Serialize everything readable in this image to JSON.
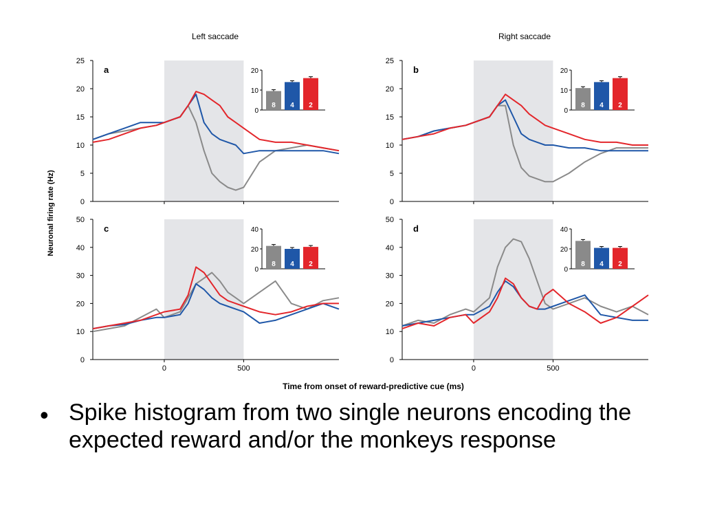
{
  "column_titles": [
    "Left saccade",
    "Right saccade"
  ],
  "y_axis_label": "Neuronal firing rate (Hz)",
  "x_axis_label": "Time from onset of reward-predictive cue (ms)",
  "bullet": "Spike histogram from two single neurons encoding the expected reward and/or the monkeys response",
  "colors": {
    "gray": "#8a8a8a",
    "blue": "#1f57a8",
    "red": "#e3262b",
    "shade": "#e4e5e8"
  },
  "chart_data": [
    {
      "type": "line",
      "panel": "a",
      "column": "Left saccade",
      "xlim": [
        -450,
        1100
      ],
      "ylim": [
        0,
        25
      ],
      "yticks": [
        0,
        5,
        10,
        15,
        20,
        25
      ],
      "xticks": [
        0,
        500
      ],
      "shaded_interval": [
        0,
        500
      ],
      "series": [
        {
          "color": "gray",
          "x": [
            -450,
            -350,
            -250,
            -150,
            -50,
            0,
            100,
            150,
            200,
            250,
            300,
            350,
            400,
            450,
            500,
            600,
            700,
            800,
            900,
            1000,
            1100
          ],
          "y": [
            11,
            12,
            12.5,
            13,
            13.5,
            14,
            15,
            17,
            14,
            9,
            5,
            3.5,
            2.5,
            2,
            2.5,
            7,
            9,
            9.5,
            10,
            9.5,
            9
          ]
        },
        {
          "color": "blue",
          "x": [
            -450,
            -350,
            -250,
            -150,
            -50,
            0,
            100,
            150,
            200,
            250,
            300,
            350,
            400,
            450,
            500,
            600,
            700,
            800,
            900,
            1000,
            1100
          ],
          "y": [
            11,
            12,
            13,
            14,
            14,
            14,
            15,
            17,
            19,
            14,
            12,
            11,
            10.5,
            10,
            8.5,
            9,
            9,
            9,
            9,
            9,
            8.5
          ]
        },
        {
          "color": "red",
          "x": [
            -450,
            -350,
            -250,
            -150,
            -50,
            0,
            100,
            150,
            200,
            250,
            300,
            350,
            400,
            450,
            500,
            600,
            700,
            800,
            900,
            1000,
            1100
          ],
          "y": [
            10.5,
            11,
            12,
            13,
            13.5,
            14,
            15,
            17,
            19.5,
            19,
            18,
            17,
            15,
            14,
            13,
            11,
            10.5,
            10.5,
            10,
            9.5,
            9
          ]
        }
      ],
      "inset": {
        "ylim": [
          0,
          20
        ],
        "yticks": [
          0,
          10,
          20
        ],
        "bars": [
          {
            "label": "8",
            "color": "gray",
            "value": 9.5
          },
          {
            "label": "4",
            "color": "blue",
            "value": 14
          },
          {
            "label": "2",
            "color": "red",
            "value": 16
          }
        ]
      }
    },
    {
      "type": "line",
      "panel": "b",
      "column": "Right saccade",
      "xlim": [
        -450,
        1100
      ],
      "ylim": [
        0,
        25
      ],
      "yticks": [
        0,
        5,
        10,
        15,
        20,
        25
      ],
      "xticks": [
        0,
        500
      ],
      "shaded_interval": [
        0,
        500
      ],
      "series": [
        {
          "color": "gray",
          "x": [
            -450,
            -350,
            -250,
            -150,
            -50,
            0,
            100,
            150,
            200,
            250,
            300,
            350,
            400,
            450,
            500,
            600,
            700,
            800,
            900,
            1000,
            1100
          ],
          "y": [
            11,
            11.5,
            12.5,
            13,
            13.5,
            14,
            15,
            17,
            17,
            10,
            6,
            4.5,
            4,
            3.5,
            3.5,
            5,
            7,
            8.5,
            9.5,
            9.5,
            9.5
          ]
        },
        {
          "color": "blue",
          "x": [
            -450,
            -350,
            -250,
            -150,
            -50,
            0,
            100,
            150,
            200,
            250,
            300,
            350,
            400,
            450,
            500,
            600,
            700,
            800,
            900,
            1000,
            1100
          ],
          "y": [
            11,
            11.5,
            12.5,
            13,
            13.5,
            14,
            15,
            17,
            18,
            15,
            12,
            11,
            10.5,
            10,
            10,
            9.5,
            9.5,
            9,
            9,
            9,
            9
          ]
        },
        {
          "color": "red",
          "x": [
            -450,
            -350,
            -250,
            -150,
            -50,
            0,
            100,
            150,
            200,
            250,
            300,
            350,
            400,
            450,
            500,
            600,
            700,
            800,
            900,
            1000,
            1100
          ],
          "y": [
            11,
            11.5,
            12,
            13,
            13.5,
            14,
            15,
            17,
            19,
            18,
            17,
            15.5,
            14.5,
            13.5,
            13,
            12,
            11,
            10.5,
            10.5,
            10,
            10
          ]
        }
      ],
      "inset": {
        "ylim": [
          0,
          20
        ],
        "yticks": [
          0,
          10,
          20
        ],
        "bars": [
          {
            "label": "8",
            "color": "gray",
            "value": 11
          },
          {
            "label": "4",
            "color": "blue",
            "value": 14
          },
          {
            "label": "2",
            "color": "red",
            "value": 16
          }
        ]
      }
    },
    {
      "type": "line",
      "panel": "c",
      "column": "Left saccade",
      "xlim": [
        -450,
        1100
      ],
      "ylim": [
        0,
        50
      ],
      "yticks": [
        0,
        10,
        20,
        30,
        40,
        50
      ],
      "xticks": [
        0,
        500
      ],
      "xticklabels": [
        "0",
        "500"
      ],
      "shaded_interval": [
        0,
        500
      ],
      "series": [
        {
          "color": "gray",
          "x": [
            -450,
            -350,
            -250,
            -150,
            -50,
            0,
            100,
            150,
            200,
            250,
            300,
            350,
            400,
            450,
            500,
            600,
            700,
            800,
            900,
            1000,
            1100
          ],
          "y": [
            10,
            11,
            12,
            15,
            18,
            15,
            17,
            22,
            27,
            29,
            31,
            28,
            24,
            22,
            20,
            24,
            28,
            20,
            18,
            21,
            22
          ]
        },
        {
          "color": "blue",
          "x": [
            -450,
            -350,
            -250,
            -150,
            -50,
            0,
            100,
            150,
            200,
            250,
            300,
            350,
            400,
            450,
            500,
            600,
            700,
            800,
            900,
            1000,
            1100
          ],
          "y": [
            11,
            12,
            12.5,
            14,
            15,
            15,
            16,
            20,
            27,
            25,
            22,
            20,
            19,
            18,
            17,
            13,
            14,
            16,
            18,
            20,
            18
          ]
        },
        {
          "color": "red",
          "x": [
            -450,
            -350,
            -250,
            -150,
            -50,
            0,
            100,
            150,
            200,
            250,
            300,
            350,
            400,
            450,
            500,
            600,
            700,
            800,
            900,
            1000,
            1100
          ],
          "y": [
            11,
            12,
            13,
            14,
            16,
            17,
            18,
            23,
            33,
            31,
            27,
            23,
            21,
            20,
            19,
            17,
            16,
            17,
            19,
            20,
            20
          ]
        }
      ],
      "inset": {
        "ylim": [
          0,
          40
        ],
        "yticks": [
          0,
          20,
          40
        ],
        "bars": [
          {
            "label": "8",
            "color": "gray",
            "value": 23
          },
          {
            "label": "4",
            "color": "blue",
            "value": 20
          },
          {
            "label": "2",
            "color": "red",
            "value": 22
          }
        ]
      }
    },
    {
      "type": "line",
      "panel": "d",
      "column": "Right saccade",
      "xlim": [
        -450,
        1100
      ],
      "ylim": [
        0,
        50
      ],
      "yticks": [
        0,
        10,
        20,
        30,
        40,
        50
      ],
      "xticks": [
        0,
        500
      ],
      "xticklabels": [
        "0",
        "500"
      ],
      "shaded_interval": [
        0,
        500
      ],
      "series": [
        {
          "color": "gray",
          "x": [
            -450,
            -350,
            -250,
            -150,
            -50,
            0,
            100,
            150,
            200,
            250,
            300,
            350,
            400,
            450,
            500,
            600,
            700,
            800,
            900,
            1000,
            1100
          ],
          "y": [
            12,
            14,
            13,
            16,
            18,
            17,
            22,
            33,
            40,
            43,
            42,
            36,
            28,
            20,
            18,
            20,
            22,
            19,
            17,
            19,
            16
          ]
        },
        {
          "color": "blue",
          "x": [
            -450,
            -350,
            -250,
            -150,
            -50,
            0,
            100,
            150,
            200,
            250,
            300,
            350,
            400,
            450,
            500,
            600,
            700,
            800,
            900,
            1000,
            1100
          ],
          "y": [
            12,
            13,
            14,
            15,
            16,
            16,
            19,
            24,
            28,
            26,
            22,
            19,
            18,
            18,
            19,
            21,
            23,
            16,
            15,
            14,
            14
          ]
        },
        {
          "color": "red",
          "x": [
            -450,
            -350,
            -250,
            -150,
            -50,
            0,
            100,
            150,
            200,
            250,
            300,
            350,
            400,
            450,
            500,
            600,
            700,
            800,
            900,
            1000,
            1100
          ],
          "y": [
            11,
            13,
            12,
            15,
            16,
            13,
            17,
            22,
            29,
            27,
            22,
            19,
            18,
            23,
            25,
            20,
            17,
            13,
            15,
            19,
            23
          ]
        }
      ],
      "inset": {
        "ylim": [
          0,
          40
        ],
        "yticks": [
          0,
          20,
          40
        ],
        "bars": [
          {
            "label": "8",
            "color": "gray",
            "value": 28
          },
          {
            "label": "4",
            "color": "blue",
            "value": 21
          },
          {
            "label": "2",
            "color": "red",
            "value": 21
          }
        ]
      }
    }
  ]
}
